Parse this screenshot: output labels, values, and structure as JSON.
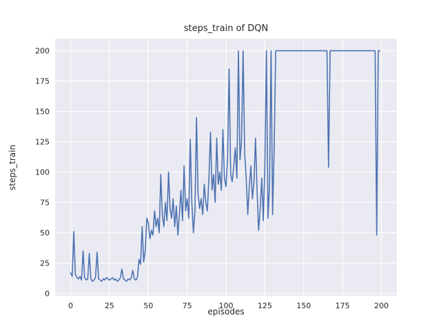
{
  "figure": {
    "title": "steps_train of DQN",
    "xlabel": "episodes",
    "ylabel": "steps_train"
  },
  "chart_data": {
    "type": "line",
    "title": "steps_train of DQN",
    "xlabel": "episodes",
    "ylabel": "steps_train",
    "legend": "none",
    "grid": "on",
    "xlim": [
      -10,
      210
    ],
    "ylim": [
      -2,
      210
    ],
    "xticks": [
      0,
      25,
      50,
      75,
      100,
      125,
      150,
      175,
      200
    ],
    "yticks": [
      0,
      25,
      50,
      75,
      100,
      125,
      150,
      175,
      200
    ],
    "x_start": 0,
    "x_step": 1,
    "series_name": "steps_train",
    "values": [
      17,
      14,
      51,
      16,
      13,
      12,
      14,
      11,
      35,
      13,
      11,
      12,
      33,
      12,
      10,
      11,
      13,
      34,
      12,
      11,
      10,
      12,
      11,
      13,
      12,
      11,
      12,
      13,
      11,
      12,
      10,
      11,
      13,
      20,
      12,
      11,
      10,
      12,
      11,
      13,
      19,
      12,
      11,
      13,
      28,
      24,
      55,
      26,
      35,
      62,
      58,
      45,
      52,
      48,
      68,
      55,
      62,
      50,
      98,
      65,
      55,
      75,
      60,
      100,
      70,
      62,
      78,
      55,
      72,
      48,
      65,
      85,
      60,
      105,
      68,
      78,
      62,
      127,
      75,
      50,
      68,
      145,
      82,
      70,
      78,
      65,
      90,
      75,
      68,
      95,
      133,
      85,
      98,
      75,
      128,
      90,
      100,
      85,
      135,
      95,
      88,
      112,
      185,
      98,
      92,
      105,
      120,
      95,
      200,
      110,
      125,
      200,
      115,
      95,
      65,
      88,
      105,
      78,
      92,
      128,
      85,
      52,
      70,
      95,
      60,
      105,
      200,
      62,
      88,
      200,
      65,
      120,
      200,
      200,
      200,
      200,
      200,
      200,
      200,
      200,
      200,
      200,
      200,
      200,
      200,
      200,
      200,
      200,
      200,
      200,
      200,
      200,
      200,
      200,
      200,
      200,
      200,
      200,
      200,
      200,
      200,
      200,
      200,
      200,
      200,
      200,
      104,
      200,
      200,
      200,
      200,
      200,
      200,
      200,
      200,
      200,
      200,
      200,
      200,
      200,
      200,
      200,
      200,
      200,
      200,
      200,
      200,
      200,
      200,
      200,
      200,
      200,
      200,
      200,
      200,
      200,
      200,
      48,
      200,
      200
    ],
    "colors": {
      "line": "#4c72b0",
      "plot_bg": "#eaeaf2",
      "grid": "#ffffff",
      "text": "#262626",
      "fig_bg": "#ffffff"
    }
  }
}
